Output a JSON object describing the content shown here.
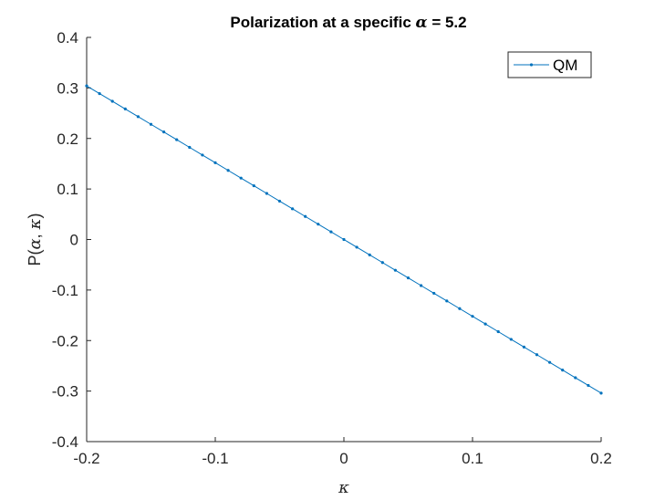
{
  "chart_data": {
    "type": "line",
    "title": "Polarization at a specific α = 5.2",
    "title_parts": {
      "prefix": "Polarization at a specific ",
      "symbol": "α",
      "suffix": " = 5.2"
    },
    "xlabel": "κ",
    "ylabel": "P(α, κ)",
    "ylabel_parts": {
      "prefix": "P(",
      "sym1": "α",
      "sep": ", ",
      "sym2": "κ",
      "suffix": ")"
    },
    "xlim": [
      -0.2,
      0.2
    ],
    "ylim": [
      -0.4,
      0.4
    ],
    "xticks": [
      -0.2,
      -0.1,
      0,
      0.1,
      0.2
    ],
    "xtick_labels": [
      "-0.2",
      "-0.1",
      "0",
      "0.1",
      "0.2"
    ],
    "yticks": [
      0.4,
      0.3,
      0.2,
      0.1,
      0,
      -0.1,
      -0.2,
      -0.3,
      -0.4
    ],
    "ytick_labels": [
      "0.4",
      "0.3",
      "0.2",
      "0.1",
      "0",
      "-0.1",
      "-0.2",
      "-0.3",
      "-0.4"
    ],
    "grid": false,
    "legend_position": "top-right",
    "series": [
      {
        "name": "QM",
        "color": "#0072BD",
        "marker": "point",
        "x": [
          -0.2,
          -0.19,
          -0.18,
          -0.17,
          -0.16,
          -0.15,
          -0.14,
          -0.13,
          -0.12,
          -0.11,
          -0.1,
          -0.09,
          -0.08,
          -0.07,
          -0.06,
          -0.05,
          -0.04,
          -0.03,
          -0.02,
          -0.01,
          0,
          0.01,
          0.02,
          0.03,
          0.04,
          0.05,
          0.06,
          0.07,
          0.08,
          0.09,
          0.1,
          0.11,
          0.12,
          0.13,
          0.14,
          0.15,
          0.16,
          0.17,
          0.18,
          0.19,
          0.2
        ],
        "y": [
          0.304,
          0.2888,
          0.2736,
          0.2584,
          0.2432,
          0.228,
          0.2128,
          0.1976,
          0.1824,
          0.1672,
          0.152,
          0.1368,
          0.1216,
          0.1064,
          0.0912,
          0.076,
          0.0608,
          0.0456,
          0.0304,
          0.0152,
          0,
          -0.0152,
          -0.0304,
          -0.0456,
          -0.0608,
          -0.076,
          -0.0912,
          -0.1064,
          -0.1216,
          -0.1368,
          -0.152,
          -0.1672,
          -0.1824,
          -0.1976,
          -0.2128,
          -0.228,
          -0.2432,
          -0.2584,
          -0.2736,
          -0.2888,
          -0.304
        ]
      }
    ]
  }
}
